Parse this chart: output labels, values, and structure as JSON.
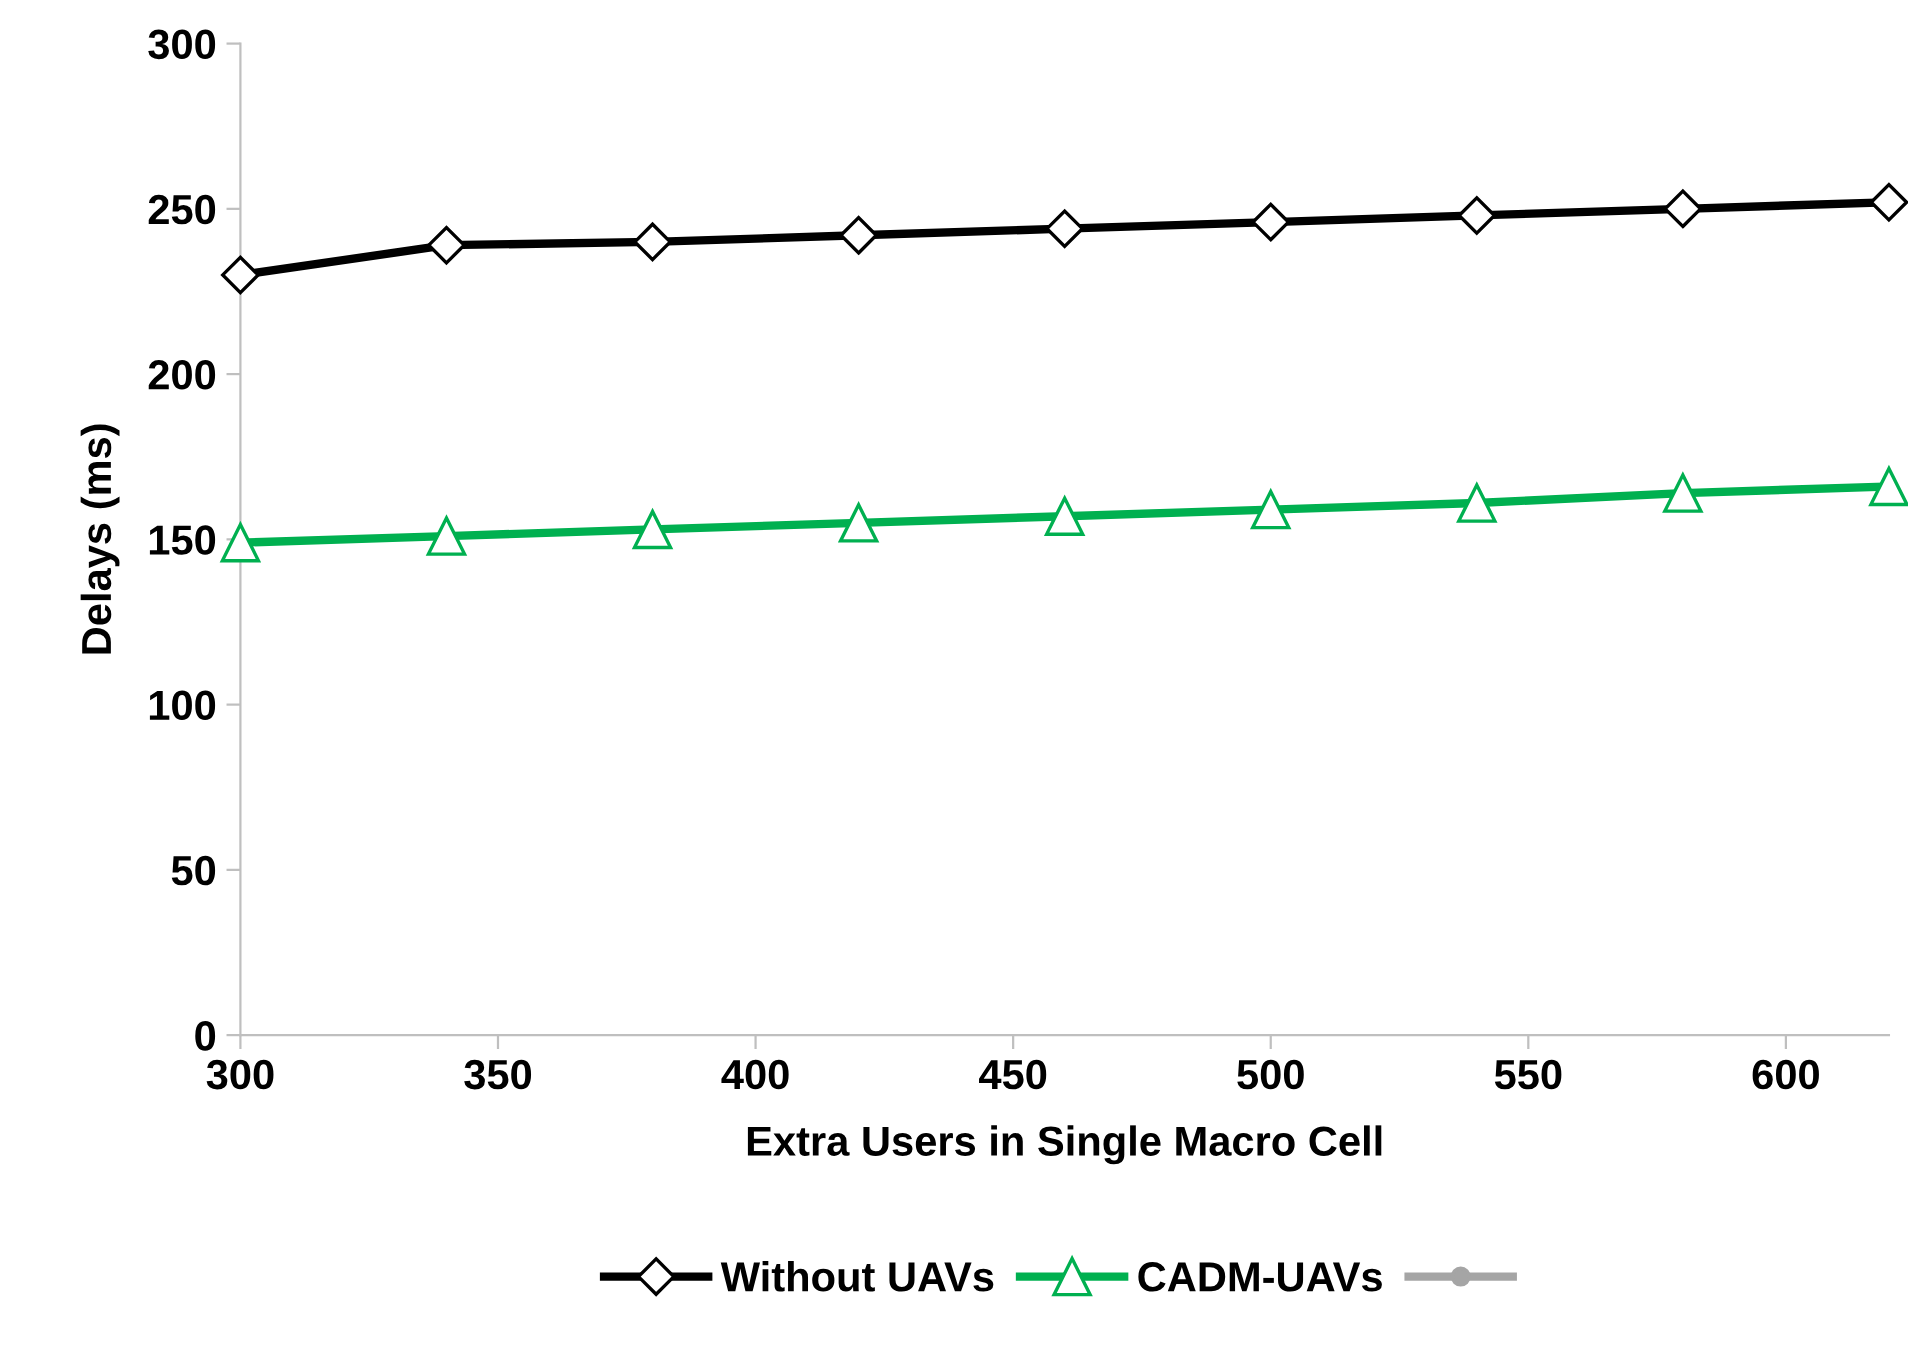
{
  "chart_data": {
    "type": "line",
    "xlabel": "Extra Users in Single Macro Cell",
    "ylabel": "Delays (ms)",
    "x": [
      300,
      340,
      380,
      420,
      460,
      500,
      540,
      580,
      620
    ],
    "series": [
      {
        "name": "Without UAVs",
        "color": "#000000",
        "marker": "diamond",
        "values": [
          230,
          239,
          240,
          242,
          244,
          246,
          248,
          250,
          252
        ]
      },
      {
        "name": "CADM-UAVs",
        "color": "#00b050",
        "marker": "triangle",
        "values": [
          149,
          151,
          153,
          155,
          157,
          159,
          161,
          164,
          166
        ]
      },
      {
        "color": "#a5a5a5",
        "marker": "circle",
        "values": [
          null,
          null,
          null,
          null,
          null,
          null,
          null,
          null,
          null
        ]
      }
    ],
    "xlim": [
      300,
      620
    ],
    "xticks": [
      300,
      350,
      400,
      450,
      500,
      550,
      600
    ],
    "ylim": [
      0,
      300
    ],
    "yticks": [
      0,
      50,
      100,
      150,
      200,
      250,
      300
    ],
    "grid": false,
    "legend": "bottom",
    "line_style": "solid"
  }
}
